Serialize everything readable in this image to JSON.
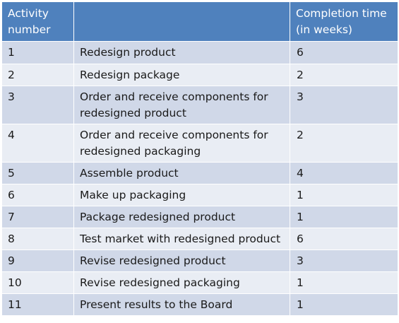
{
  "table": {
    "headers": {
      "activity": "Activity\nnumber",
      "activity_line1": "Activity",
      "activity_line2": "number",
      "description": "",
      "time_line1": "Completion time",
      "time_line2": "(in weeks)"
    },
    "rows": [
      {
        "number": "1",
        "line1": "Redesign product",
        "line2": "",
        "time": "6"
      },
      {
        "number": "2",
        "line1": "Redesign package",
        "line2": "",
        "time": "2"
      },
      {
        "number": "3",
        "line1": "Order and receive components for",
        "line2": "redesigned product",
        "time": "3"
      },
      {
        "number": "4",
        "line1": "Order and receive components for",
        "line2": "redesigned packaging",
        "time": "2"
      },
      {
        "number": "5",
        "line1": "Assemble product",
        "line2": "",
        "time": "4"
      },
      {
        "number": "6",
        "line1": "Make up packaging",
        "line2": "",
        "time": "1"
      },
      {
        "number": "7",
        "line1": "Package redesigned product",
        "line2": "",
        "time": "1"
      },
      {
        "number": "8",
        "line1": "Test market with redesigned product",
        "line2": "",
        "time": "6"
      },
      {
        "number": "9",
        "line1": "Revise redesigned product",
        "line2": "",
        "time": "3"
      },
      {
        "number": "10",
        "line1": "Revise redesigned packaging",
        "line2": "",
        "time": "1"
      },
      {
        "number": "11",
        "line1": "Present results to the Board",
        "line2": "",
        "time": "1"
      }
    ]
  },
  "colors": {
    "header_bg": "#4f81bd",
    "row_dark": "#d0d8e8",
    "row_light": "#e9edf4"
  }
}
